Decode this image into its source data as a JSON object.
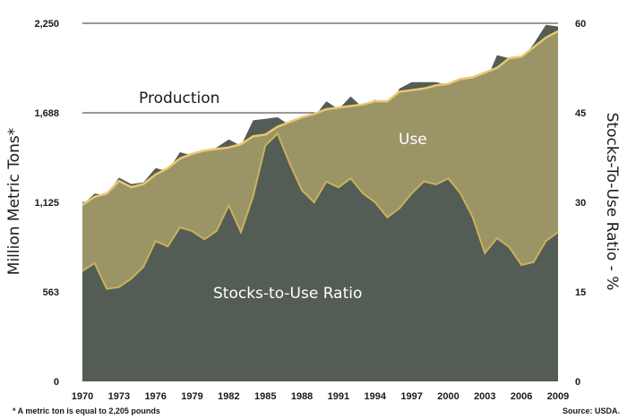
{
  "chart_data": {
    "type": "area",
    "title": "",
    "ylabel_left": "Million Metric Tons*",
    "ylabel_right": "Stocks-To-Use  Ratio - %",
    "footnote": "* A metric ton is equal to 2,205 pounds",
    "source": "Source: USDA.",
    "x_start": 1970,
    "x_end": 2009,
    "x_tick_labels": [
      "1970",
      "1973",
      "1976",
      "1979",
      "1982",
      "1985",
      "1988",
      "1991",
      "1994",
      "1997",
      "2000",
      "2003",
      "2006",
      "2009"
    ],
    "y_left_ticks": [
      "0",
      "563",
      "1,125",
      "1,688",
      "2,250"
    ],
    "y_right_ticks": [
      "0",
      "15",
      "30",
      "45",
      "60"
    ],
    "ylim_left": [
      0,
      2250
    ],
    "ylim_right": [
      0,
      60
    ],
    "grid": "horizontal",
    "colors": {
      "production": "#545c56",
      "use": "#9b9467",
      "use_line": "#e8c870",
      "stocks": "#545c56",
      "stocks_line": "#c8b35a",
      "use_label": "#ffffff",
      "stocks_label": "#ffffff",
      "production_label": "#1a1a1a"
    },
    "series": [
      {
        "name": "Production",
        "axis": "left",
        "values": [
          1110,
          1180,
          1170,
          1280,
          1240,
          1250,
          1340,
          1320,
          1440,
          1420,
          1440,
          1470,
          1520,
          1480,
          1640,
          1650,
          1660,
          1610,
          1580,
          1660,
          1760,
          1710,
          1790,
          1720,
          1770,
          1710,
          1840,
          1880,
          1880,
          1880,
          1860,
          1880,
          1840,
          1870,
          2050,
          2030,
          2020,
          2120,
          2240,
          2230
        ]
      },
      {
        "name": "Use",
        "axis": "left",
        "values": [
          1110,
          1160,
          1180,
          1260,
          1220,
          1240,
          1300,
          1340,
          1400,
          1430,
          1450,
          1460,
          1470,
          1490,
          1540,
          1550,
          1600,
          1630,
          1660,
          1680,
          1710,
          1720,
          1730,
          1740,
          1760,
          1760,
          1820,
          1830,
          1840,
          1860,
          1870,
          1900,
          1910,
          1940,
          1970,
          2030,
          2040,
          2100,
          2160,
          2200
        ]
      },
      {
        "name": "Stocks-to-Use Ratio",
        "axis": "right",
        "values": [
          18.5,
          19.8,
          15.5,
          15.8,
          17.2,
          19.2,
          23.5,
          22.6,
          25.8,
          25.2,
          23.8,
          25.2,
          29.5,
          25.0,
          31.0,
          39.5,
          41.5,
          36.5,
          32.0,
          30.0,
          33.5,
          32.5,
          34.0,
          31.5,
          30.0,
          27.5,
          29.0,
          31.5,
          33.5,
          33.0,
          34.0,
          31.5,
          27.5,
          21.5,
          24.0,
          22.5,
          19.5,
          20.0,
          23.5,
          25.0
        ]
      }
    ]
  }
}
